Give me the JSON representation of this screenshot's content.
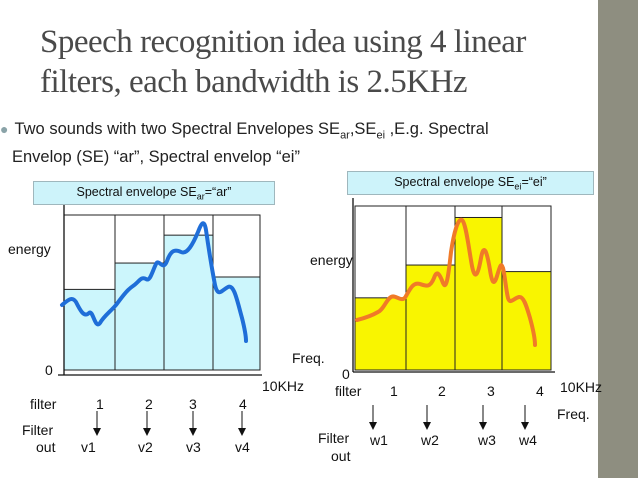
{
  "title_lines": [
    "Speech recognition idea using 4 linear",
    "filters, each bandwidth is 2.5KHz"
  ],
  "bullet": {
    "prefix": "Two sounds with two Spectral Envelopes SE",
    "sub1": "ar",
    "mid": ",SE",
    "sub2": "ei",
    "rest": " ,E.g. Spectral",
    "line2": "Envelop (SE) “ar”, Spectral envelop “ei”"
  },
  "left": {
    "box": {
      "prefix": "Spectral envelope SE",
      "sub": "ar",
      "suffix": "=“ar”"
    },
    "ylabel": "energy",
    "zero": "0",
    "xmax": "10KHz",
    "filter_label": "filter",
    "filter_numbers": [
      "1",
      "2",
      "3",
      "4"
    ],
    "out_label_1": "Filter",
    "out_label_2": "out",
    "outputs": [
      "v1",
      "v2",
      "v3",
      "v4"
    ],
    "bar_levels": [
      0.52,
      0.69,
      0.87,
      0.6
    ],
    "bar_color": "#ccf6fc",
    "curve_color": "#1f6ed8"
  },
  "right": {
    "box": {
      "prefix": "Spectral envelope SE",
      "sub": "ei",
      "suffix": "=“ei”"
    },
    "ylabel": "energy",
    "freq_top": "Freq.",
    "zero": "0",
    "filter_label": "filter",
    "filter_numbers": [
      "1",
      "2",
      "3",
      "4"
    ],
    "xmax": "10KHz",
    "freq_bottom": "Freq.",
    "out_label_1": "Filter",
    "out_label_2": "out",
    "outputs": [
      "w1",
      "w2",
      "w3",
      "w4"
    ],
    "bar_levels": [
      0.44,
      0.64,
      0.93,
      0.6
    ],
    "bar_color": "#f9f500",
    "curve_color": "#f07a28"
  }
}
